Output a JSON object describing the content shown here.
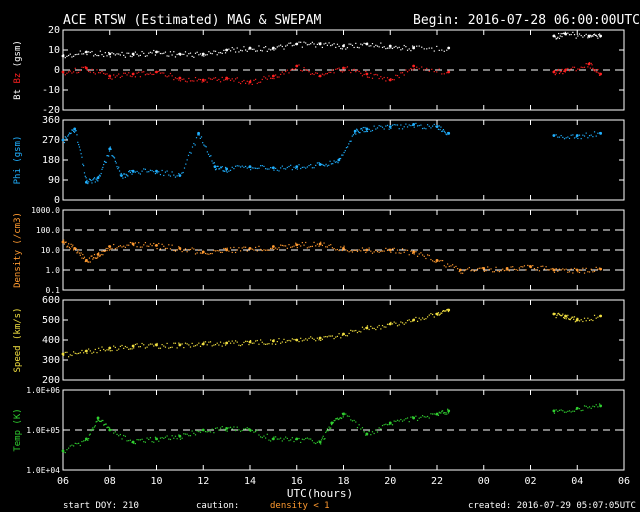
{
  "header": {
    "title": "ACE RTSW (Estimated) MAG & SWEPAM",
    "begin": "Begin: 2016-07-28 06:00:00UTC"
  },
  "footer": {
    "start_doy": "start DOY: 210",
    "caution": "caution:",
    "density_note": "density < 1",
    "created": "created: 2016-07-29 05:07:05UTC"
  },
  "colors": {
    "bt": "#ffffff",
    "bz": "#ff2020",
    "phi": "#20b0ff",
    "density": "#ff9a30",
    "speed": "#f2e040",
    "temp": "#30d030",
    "frame": "#ffffff",
    "zero_line": "#ffffff"
  },
  "chart_data": {
    "type": "scatter",
    "x_axis": {
      "label": "UTC(hours)",
      "ticks": [
        "06",
        "08",
        "10",
        "12",
        "14",
        "16",
        "18",
        "20",
        "22",
        "00",
        "02",
        "04",
        "06"
      ],
      "range_hours": [
        0,
        24
      ]
    },
    "panels": [
      {
        "id": "mag",
        "ylabel_parts": [
          {
            "text": "Bt",
            "color": "#ffffff"
          },
          {
            "text": " Bz",
            "color": "#ff2020"
          },
          {
            "text": " (gsm)",
            "color": "#ffffff"
          }
        ],
        "ylim": [
          -20,
          20
        ],
        "yticks": [
          "20",
          "10",
          "0",
          "-10",
          "-20"
        ],
        "reference_lines": [
          0
        ],
        "series": [
          {
            "name": "Bt",
            "color": "#ffffff",
            "x": [
              0,
              1,
              2,
              3,
              4,
              5,
              6,
              7,
              8,
              9,
              10,
              11,
              12,
              13,
              14,
              15,
              16.5,
              21,
              21.5,
              22.5,
              23
            ],
            "y": [
              7,
              9,
              8,
              8,
              9,
              8,
              8,
              10,
              11,
              11,
              13,
              13,
              12,
              13,
              12,
              11,
              11,
              17,
              18,
              17,
              17
            ]
          },
          {
            "name": "Bz",
            "color": "#ff2020",
            "x": [
              0,
              1,
              2,
              3,
              4,
              5,
              6,
              7,
              8,
              9,
              10,
              11,
              12,
              13,
              14,
              15,
              16.5,
              21,
              21.5,
              22.5,
              23
            ],
            "y": [
              -1,
              1,
              -3,
              -2,
              -1,
              -4,
              -5,
              -4,
              -6,
              -3,
              2,
              -3,
              1,
              -2,
              -5,
              2,
              -1,
              -1,
              0,
              3,
              -2
            ]
          }
        ]
      },
      {
        "id": "phi",
        "ylabel": "Phi (gsm)",
        "ylabel_color": "#20b0ff",
        "ylim": [
          0,
          360
        ],
        "yticks": [
          "360",
          "270",
          "180",
          "90",
          "0"
        ],
        "reference_lines": [],
        "series": [
          {
            "name": "Phi",
            "color": "#20b0ff",
            "x": [
              0,
              0.5,
              1,
              1.5,
              2,
              2.5,
              3,
              4,
              5,
              5.8,
              6.5,
              7,
              8,
              9,
              10,
              11,
              11.8,
              12.5,
              13,
              14,
              15,
              16,
              16.5,
              21,
              22,
              23
            ],
            "y": [
              270,
              320,
              80,
              100,
              230,
              110,
              130,
              130,
              110,
              300,
              150,
              140,
              150,
              145,
              150,
              160,
              180,
              310,
              320,
              330,
              340,
              330,
              300,
              290,
              290,
              300
            ]
          }
        ]
      },
      {
        "id": "density",
        "ylabel": "Density (/cm3)",
        "ylabel_color": "#ff9a30",
        "scale": "log",
        "ylim": [
          0.1,
          1000
        ],
        "yticks": [
          "1000.0",
          "100.0",
          "10.0",
          "1.0",
          "0.1"
        ],
        "reference_lines": [
          100,
          10,
          1
        ],
        "series": [
          {
            "name": "Density",
            "color": "#ff9a30",
            "x": [
              0,
              0.5,
              1,
              1.5,
              2,
              3,
              4,
              5,
              6,
              7,
              8,
              9,
              10,
              11,
              12,
              13,
              14,
              15,
              16,
              17,
              18,
              19,
              20,
              21,
              22,
              23
            ],
            "y": [
              25,
              12,
              3,
              6,
              15,
              20,
              17,
              12,
              8,
              10,
              12,
              15,
              18,
              20,
              12,
              10,
              10,
              8,
              3,
              1,
              1.2,
              1.2,
              1.5,
              1,
              1,
              1.1
            ]
          }
        ]
      },
      {
        "id": "speed",
        "ylabel": "Speed (km/s)",
        "ylabel_color": "#f2e040",
        "ylim": [
          200,
          600
        ],
        "yticks": [
          "600",
          "500",
          "400",
          "300",
          "200"
        ],
        "reference_lines": [],
        "series": [
          {
            "name": "Speed",
            "color": "#f2e040",
            "x": [
              0,
              1,
              2,
              3,
              4,
              5,
              6,
              7,
              8,
              9,
              10,
              11,
              12,
              13,
              14,
              15,
              16,
              16.5,
              21,
              21.5,
              22,
              23
            ],
            "y": [
              330,
              345,
              360,
              370,
              375,
              375,
              380,
              385,
              390,
              395,
              400,
              410,
              430,
              460,
              480,
              500,
              530,
              550,
              530,
              520,
              500,
              520
            ]
          }
        ]
      },
      {
        "id": "temp",
        "ylabel": "Temp (K)",
        "ylabel_color": "#30d030",
        "scale": "log",
        "ylim": [
          10000,
          1000000
        ],
        "yticks": [
          "1.0E+06",
          "1.0E+05",
          "1.0E+04"
        ],
        "reference_lines": [
          100000
        ],
        "series": [
          {
            "name": "Temp",
            "color": "#30d030",
            "x": [
              0,
              1,
              1.5,
              2,
              3,
              4,
              5,
              6,
              7,
              8,
              9,
              10,
              11,
              11.5,
              12,
              13,
              14,
              15,
              16,
              16.5,
              21,
              22,
              23
            ],
            "y": [
              30000,
              60000,
              200000,
              100000,
              50000,
              60000,
              70000,
              100000,
              110000,
              100000,
              60000,
              60000,
              50000,
              150000,
              250000,
              80000,
              150000,
              200000,
              250000,
              300000,
              300000,
              350000,
              400000
            ]
          }
        ]
      }
    ]
  }
}
